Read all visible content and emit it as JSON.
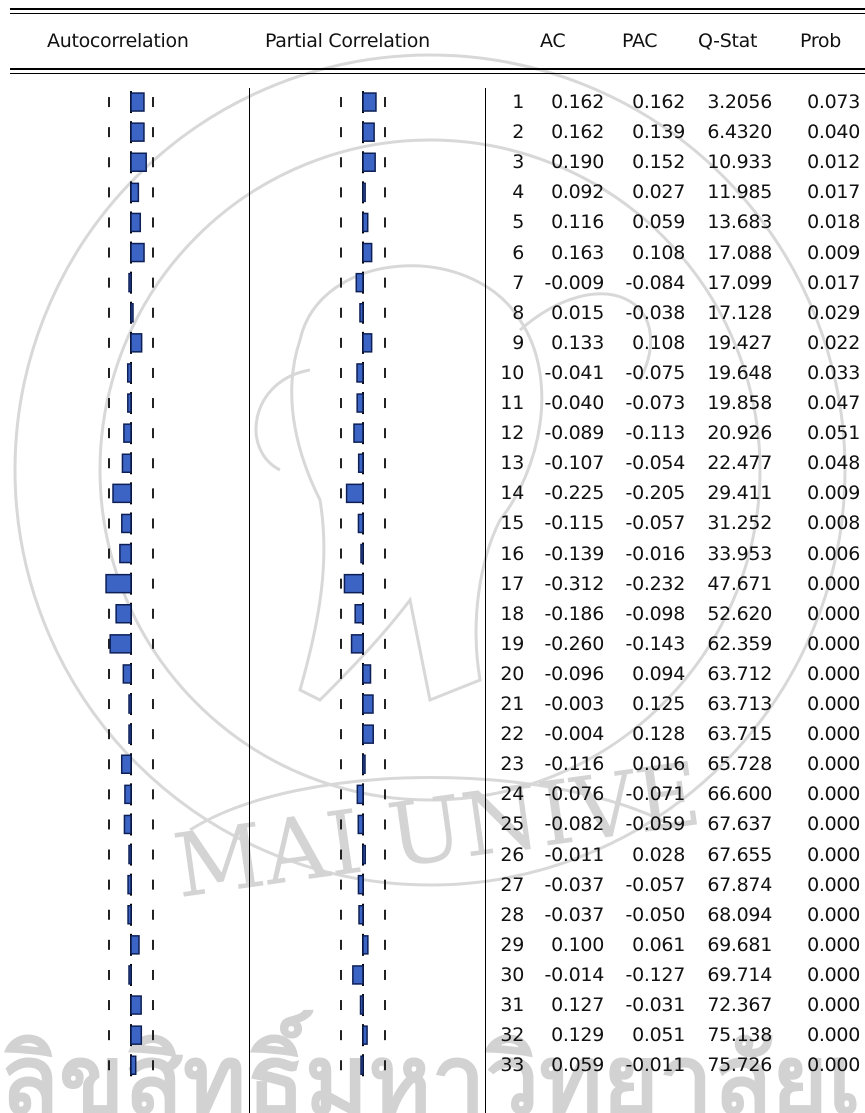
{
  "headers": {
    "autocorrelation": "Autocorrelation",
    "partial_correlation": "Partial Correlation",
    "ac": "AC",
    "pac": "PAC",
    "q_stat": "Q-Stat",
    "prob": "Prob"
  },
  "rows": [
    {
      "lag": "1",
      "ac": "0.162",
      "pac": "0.162",
      "q": "3.2056",
      "p": "0.073"
    },
    {
      "lag": "2",
      "ac": "0.162",
      "pac": "0.139",
      "q": "6.4320",
      "p": "0.040"
    },
    {
      "lag": "3",
      "ac": "0.190",
      "pac": "0.152",
      "q": "10.933",
      "p": "0.012"
    },
    {
      "lag": "4",
      "ac": "0.092",
      "pac": "0.027",
      "q": "11.985",
      "p": "0.017"
    },
    {
      "lag": "5",
      "ac": "0.116",
      "pac": "0.059",
      "q": "13.683",
      "p": "0.018"
    },
    {
      "lag": "6",
      "ac": "0.163",
      "pac": "0.108",
      "q": "17.088",
      "p": "0.009"
    },
    {
      "lag": "7",
      "ac": "-0.009",
      "pac": "-0.084",
      "q": "17.099",
      "p": "0.017"
    },
    {
      "lag": "8",
      "ac": "0.015",
      "pac": "-0.038",
      "q": "17.128",
      "p": "0.029"
    },
    {
      "lag": "9",
      "ac": "0.133",
      "pac": "0.108",
      "q": "19.427",
      "p": "0.022"
    },
    {
      "lag": "10",
      "ac": "-0.041",
      "pac": "-0.075",
      "q": "19.648",
      "p": "0.033"
    },
    {
      "lag": "11",
      "ac": "-0.040",
      "pac": "-0.073",
      "q": "19.858",
      "p": "0.047"
    },
    {
      "lag": "12",
      "ac": "-0.089",
      "pac": "-0.113",
      "q": "20.926",
      "p": "0.051"
    },
    {
      "lag": "13",
      "ac": "-0.107",
      "pac": "-0.054",
      "q": "22.477",
      "p": "0.048"
    },
    {
      "lag": "14",
      "ac": "-0.225",
      "pac": "-0.205",
      "q": "29.411",
      "p": "0.009"
    },
    {
      "lag": "15",
      "ac": "-0.115",
      "pac": "-0.057",
      "q": "31.252",
      "p": "0.008"
    },
    {
      "lag": "16",
      "ac": "-0.139",
      "pac": "-0.016",
      "q": "33.953",
      "p": "0.006"
    },
    {
      "lag": "17",
      "ac": "-0.312",
      "pac": "-0.232",
      "q": "47.671",
      "p": "0.000"
    },
    {
      "lag": "18",
      "ac": "-0.186",
      "pac": "-0.098",
      "q": "52.620",
      "p": "0.000"
    },
    {
      "lag": "19",
      "ac": "-0.260",
      "pac": "-0.143",
      "q": "62.359",
      "p": "0.000"
    },
    {
      "lag": "20",
      "ac": "-0.096",
      "pac": "0.094",
      "q": "63.712",
      "p": "0.000"
    },
    {
      "lag": "21",
      "ac": "-0.003",
      "pac": "0.125",
      "q": "63.713",
      "p": "0.000"
    },
    {
      "lag": "22",
      "ac": "-0.004",
      "pac": "0.128",
      "q": "63.715",
      "p": "0.000"
    },
    {
      "lag": "23",
      "ac": "-0.116",
      "pac": "0.016",
      "q": "65.728",
      "p": "0.000"
    },
    {
      "lag": "24",
      "ac": "-0.076",
      "pac": "-0.071",
      "q": "66.600",
      "p": "0.000"
    },
    {
      "lag": "25",
      "ac": "-0.082",
      "pac": "-0.059",
      "q": "67.637",
      "p": "0.000"
    },
    {
      "lag": "26",
      "ac": "-0.011",
      "pac": "0.028",
      "q": "67.655",
      "p": "0.000"
    },
    {
      "lag": "27",
      "ac": "-0.037",
      "pac": "-0.057",
      "q": "67.874",
      "p": "0.000"
    },
    {
      "lag": "28",
      "ac": "-0.037",
      "pac": "-0.050",
      "q": "68.094",
      "p": "0.000"
    },
    {
      "lag": "29",
      "ac": "0.100",
      "pac": "0.061",
      "q": "69.681",
      "p": "0.000"
    },
    {
      "lag": "30",
      "ac": "-0.014",
      "pac": "-0.127",
      "q": "69.714",
      "p": "0.000"
    },
    {
      "lag": "31",
      "ac": "0.127",
      "pac": "-0.031",
      "q": "72.367",
      "p": "0.000"
    },
    {
      "lag": "32",
      "ac": "0.129",
      "pac": "0.051",
      "q": "75.138",
      "p": "0.000"
    },
    {
      "lag": "33",
      "ac": "0.059",
      "pac": "-0.011",
      "q": "75.726",
      "p": "0.000"
    }
  ],
  "colors": {
    "bar_fill": "#3c64c4",
    "bar_outline": "#0d1f55",
    "watermark": "#cfcfcf"
  },
  "icons": {
    "watermark": "university-seal-watermark"
  }
}
